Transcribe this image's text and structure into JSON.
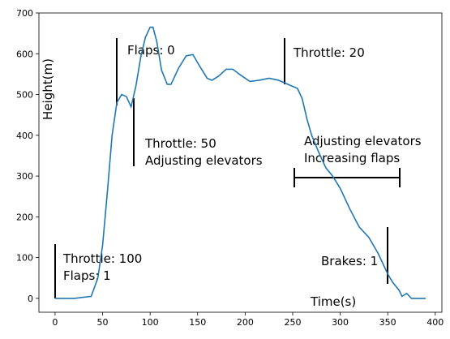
{
  "chart_data": {
    "type": "line",
    "x_label": "Time(s)",
    "y_label": "Height(m)",
    "annotations": [
      "Throttle: 100",
      "Flaps: 1",
      "Flaps: 0",
      "Throttle: 50",
      "Adjusting elevators",
      "Throttle: 20",
      "Adjusting elevators",
      "Increasing flaps",
      "Brakes: 1"
    ],
    "x": [
      0,
      20,
      38,
      45,
      50,
      55,
      60,
      65,
      70,
      75,
      80,
      85,
      90,
      95,
      100,
      103,
      107,
      112,
      118,
      122,
      130,
      138,
      145,
      152,
      160,
      165,
      172,
      180,
      187,
      195,
      205,
      215,
      225,
      235,
      245,
      255,
      260,
      265,
      270,
      278,
      285,
      292,
      300,
      310,
      320,
      330,
      340,
      350,
      355,
      362,
      365,
      370,
      375,
      390
    ],
    "series": [
      {
        "color": "#1f77b4",
        "values": [
          0,
          0,
          5,
          50,
          130,
          260,
          400,
          480,
          500,
          495,
          470,
          520,
          590,
          640,
          665,
          665,
          630,
          560,
          525,
          525,
          565,
          595,
          598,
          570,
          540,
          535,
          545,
          562,
          562,
          548,
          532,
          535,
          540,
          535,
          525,
          515,
          490,
          440,
          400,
          355,
          320,
          300,
          270,
          220,
          175,
          150,
          110,
          60,
          40,
          20,
          5,
          12,
          0,
          0
        ]
      }
    ],
    "xlim": [
      -17,
      407
    ],
    "ylim": [
      -34,
      700
    ],
    "xticks": [
      0,
      50,
      100,
      150,
      200,
      250,
      300,
      350,
      400
    ],
    "yticks": [
      0,
      100,
      200,
      300,
      400,
      500,
      600,
      700
    ],
    "grid": false
  }
}
